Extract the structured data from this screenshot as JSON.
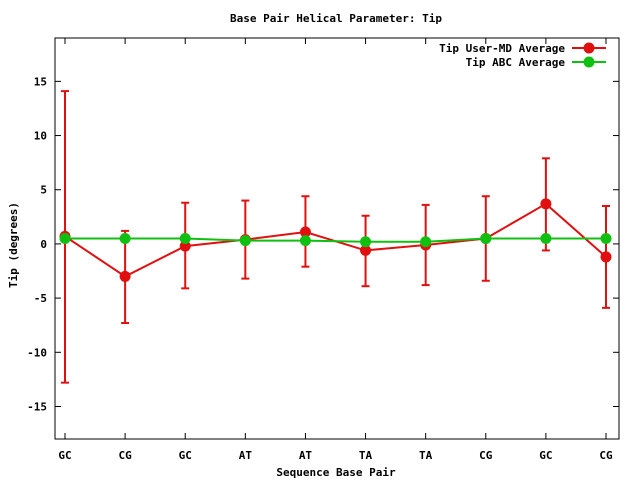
{
  "chart_data": {
    "type": "line",
    "title": "Base Pair Helical Parameter: Tip",
    "xlabel": "Sequence Base Pair",
    "ylabel": "Tip (degrees)",
    "categories": [
      "GC",
      "CG",
      "GC",
      "AT",
      "AT",
      "TA",
      "TA",
      "CG",
      "GC",
      "CG"
    ],
    "ylim": [
      -18,
      19
    ],
    "yticks": [
      -15,
      -10,
      -5,
      0,
      5,
      10,
      15
    ],
    "ytick_labels": [
      "-15",
      "-10",
      "-5",
      "0",
      "5",
      "10",
      "15"
    ],
    "grid": false,
    "legend_position": "top-right",
    "series": [
      {
        "name": "Tip User-MD Average",
        "color": "#e01010",
        "values": [
          0.7,
          -3.0,
          -0.2,
          0.4,
          1.1,
          -0.6,
          -0.1,
          0.5,
          3.7,
          -1.2
        ],
        "error_low": [
          -12.8,
          -7.3,
          -4.1,
          -3.2,
          -2.1,
          -3.9,
          -3.8,
          -3.4,
          -0.6,
          -5.9
        ],
        "error_high": [
          14.1,
          1.2,
          3.8,
          4.0,
          4.4,
          2.6,
          3.6,
          4.4,
          7.9,
          3.5
        ]
      },
      {
        "name": "Tip ABC Average",
        "color": "#10c010",
        "values": [
          0.5,
          0.5,
          0.5,
          0.3,
          0.3,
          0.2,
          0.2,
          0.5,
          0.5,
          0.5
        ]
      }
    ]
  }
}
